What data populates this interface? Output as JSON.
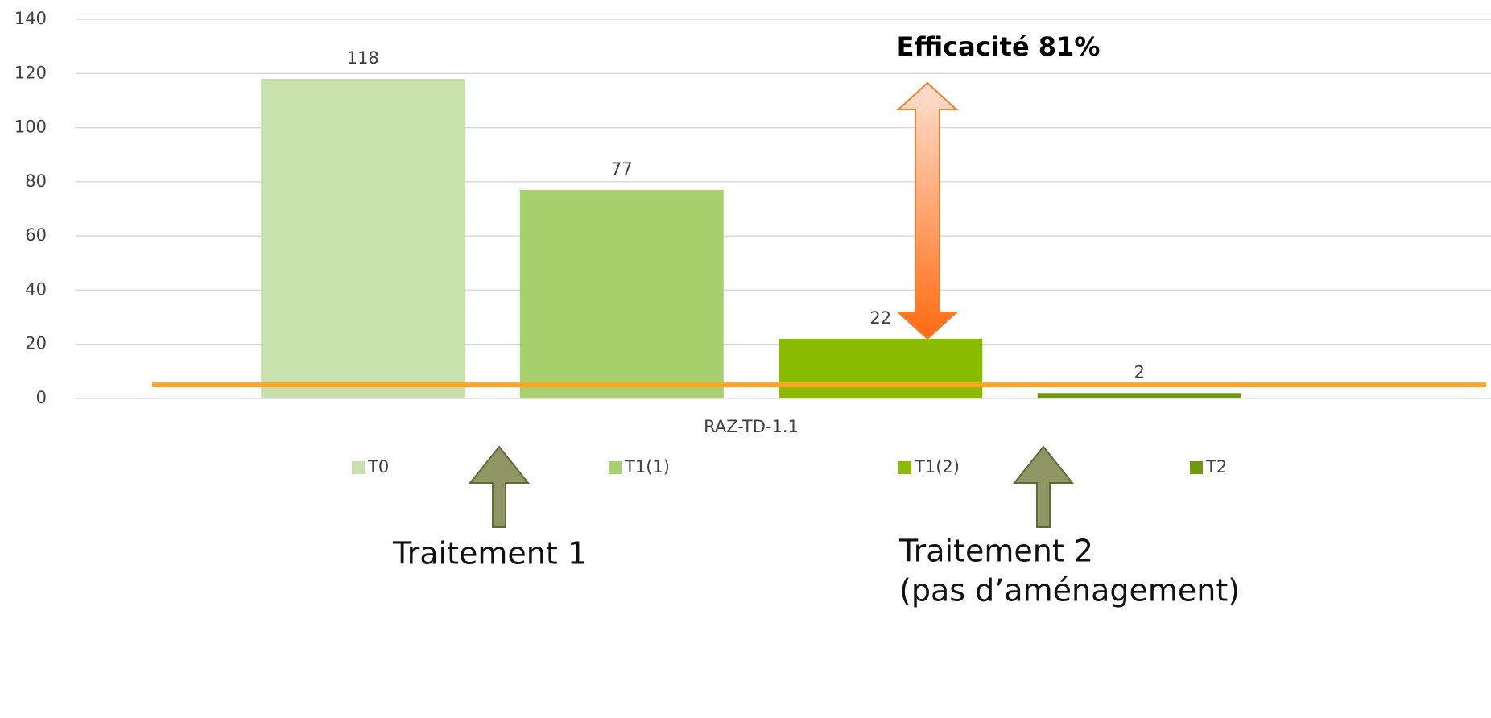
{
  "chart_data": {
    "type": "bar",
    "categories": [
      "RAZ-TD-1.1"
    ],
    "series": [
      {
        "name": "T0",
        "color": "#c9e1ad",
        "values": [
          118
        ]
      },
      {
        "name": "T1(1)",
        "color": "#a9d06e",
        "values": [
          77
        ]
      },
      {
        "name": "T1(2)",
        "color": "#8bbb00",
        "values": [
          22
        ]
      },
      {
        "name": "T2",
        "color": "#6f9a10",
        "values": [
          2
        ]
      }
    ],
    "ylim": [
      0,
      140
    ],
    "yticks": [
      0,
      20,
      40,
      60,
      80,
      100,
      120,
      140
    ],
    "grid": true,
    "legend": "bottom",
    "threshold": {
      "value": 5,
      "color": "#ffa526"
    },
    "annotations": [
      "Efficacité 81%",
      "Traitement 1",
      "Traitement 2",
      "(pas d’aménagement)"
    ]
  }
}
